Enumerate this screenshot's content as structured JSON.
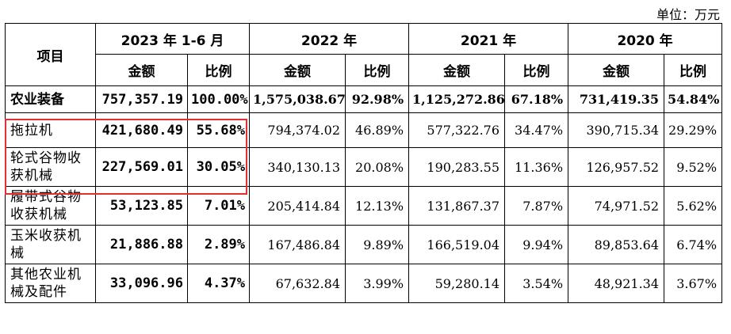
{
  "unit_label": "单位：万元",
  "header": {
    "item": "项目",
    "periods": [
      "2023 年 1-6 月",
      "2022 年",
      "2021 年",
      "2020 年"
    ],
    "amount": "金额",
    "ratio": "比例"
  },
  "rows": [
    {
      "label": "农业装备",
      "cells": [
        "757,357.19",
        "100.00%",
        "1,575,038.67",
        "92.98%",
        "1,125,272.86",
        "67.18%",
        "731,419.35",
        "54.84%"
      ]
    },
    {
      "label": "拖拉机",
      "cells": [
        "421,680.49",
        "55.68%",
        "794,374.02",
        "46.89%",
        "577,322.76",
        "34.47%",
        "390,715.34",
        "29.29%"
      ]
    },
    {
      "label": "轮式谷物收获机械",
      "cells": [
        "227,569.01",
        "30.05%",
        "340,130.13",
        "20.08%",
        "190,283.55",
        "11.36%",
        "126,957.52",
        "9.52%"
      ]
    },
    {
      "label": "履带式谷物收获机械",
      "cells": [
        "53,123.85",
        "7.01%",
        "205,414.84",
        "12.13%",
        "131,867.37",
        "7.87%",
        "74,971.52",
        "5.62%"
      ]
    },
    {
      "label": "玉米收获机械",
      "cells": [
        "21,886.88",
        "2.89%",
        "167,486.84",
        "9.89%",
        "166,519.04",
        "9.94%",
        "89,853.64",
        "6.74%"
      ]
    },
    {
      "label": "其他农业机械及配件",
      "cells": [
        "33,096.96",
        "4.37%",
        "67,632.84",
        "3.99%",
        "59,280.14",
        "3.54%",
        "48,921.34",
        "3.67%"
      ]
    }
  ]
}
